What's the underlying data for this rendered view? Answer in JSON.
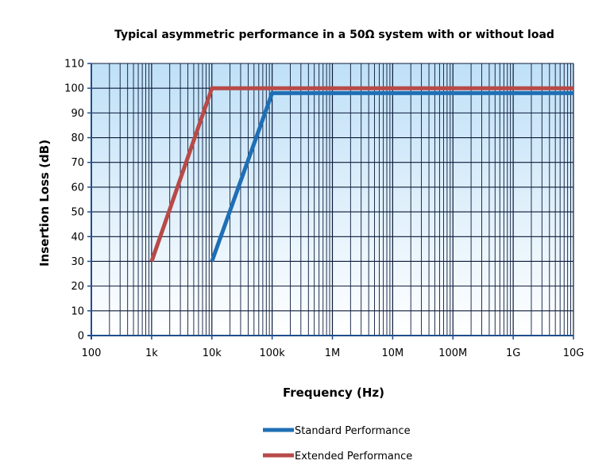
{
  "chart_data": {
    "type": "line",
    "title": "Typical asymmetric performance in a 50Ω system with or without load",
    "xlabel": "Frequency (Hz)",
    "ylabel": "Insertion Loss (dB)",
    "x_scale": "log",
    "xlim": [
      100,
      10000000000
    ],
    "ylim": [
      0,
      110
    ],
    "x_ticks": [
      100,
      1000,
      10000,
      100000,
      1000000,
      10000000,
      100000000,
      1000000000,
      10000000000
    ],
    "x_tick_labels": [
      "100",
      "1k",
      "10k",
      "100k",
      "1M",
      "10M",
      "100M",
      "1G",
      "10G"
    ],
    "y_ticks": [
      0,
      10,
      20,
      30,
      40,
      50,
      60,
      70,
      80,
      90,
      100,
      110
    ],
    "y_tick_labels": [
      "0",
      "10",
      "20",
      "30",
      "40",
      "50",
      "60",
      "70",
      "80",
      "90",
      "100",
      "110"
    ],
    "grid": true,
    "legend_position": "bottom",
    "series": [
      {
        "name": "Standard Performance",
        "color": "#1f6fb5",
        "x": [
          10000,
          100000,
          10000000000
        ],
        "y": [
          30,
          98,
          98
        ]
      },
      {
        "name": "Extended Performance",
        "color": "#b84a48",
        "x": [
          1000,
          10000,
          10000000000
        ],
        "y": [
          30,
          100,
          100
        ]
      }
    ],
    "colors": {
      "plot_bg_top": "#bfe0f7",
      "plot_bg_bottom": "#ffffff",
      "grid": "#0b1a3a",
      "axis": "#1f4e8c"
    }
  }
}
